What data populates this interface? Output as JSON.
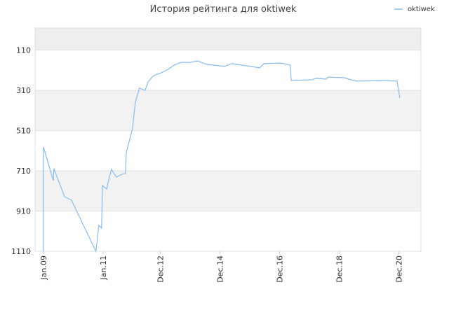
{
  "chart_data": {
    "type": "line",
    "title": "История рейтинга для oktiwek",
    "series": [
      {
        "name": "oktiwek",
        "color": "#88bbee",
        "x": [
          2009.0,
          2009.0,
          2009.31,
          2009.33,
          2009.35,
          2009.71,
          2009.94,
          2010.76,
          2010.86,
          2010.95,
          2010.98,
          2011.12,
          2011.19,
          2011.28,
          2011.45,
          2011.68,
          2011.75,
          2011.78,
          2011.87,
          2011.99,
          2012.08,
          2012.22,
          2012.41,
          2012.51,
          2012.67,
          2012.81,
          2012.95,
          2013.19,
          2013.38,
          2013.61,
          2013.89,
          2014.18,
          2014.48,
          2015.07,
          2015.31,
          2016.25,
          2016.39,
          2016.95,
          2017.28,
          2017.31,
          2018.01,
          2018.15,
          2018.48,
          2018.55,
          2019.07,
          2019.49,
          2020.36,
          2020.86,
          2020.95
        ],
        "values": [
          1110,
          591,
          748,
          759,
          699,
          839,
          856,
          1110,
          981,
          995,
          783,
          800,
          755,
          703,
          741,
          724,
          724,
          619,
          567,
          498,
          372,
          299,
          310,
          268,
          240,
          230,
          223,
          205,
          184,
          171,
          171,
          164,
          181,
          191,
          177,
          198,
          177,
          174,
          184,
          261,
          257,
          250,
          254,
          244,
          247,
          264,
          261,
          264,
          348
        ]
      }
    ],
    "xlim": [
      2008.72,
      2021.66
    ],
    "xticks": [
      {
        "value": 2009.0,
        "label": "Jan.09"
      },
      {
        "value": 2011.0,
        "label": "Jan.11"
      },
      {
        "value": 2012.92,
        "label": "Dec.12"
      },
      {
        "value": 2014.92,
        "label": "Dec.14"
      },
      {
        "value": 2016.92,
        "label": "Dec.16"
      },
      {
        "value": 2018.92,
        "label": "Dec.18"
      },
      {
        "value": 2020.92,
        "label": "Dec.20"
      }
    ],
    "ylim": [
      1110,
      0
    ],
    "yticks": [
      110,
      310,
      510,
      710,
      910,
      1110
    ],
    "grid": true,
    "legend": "top-right"
  }
}
